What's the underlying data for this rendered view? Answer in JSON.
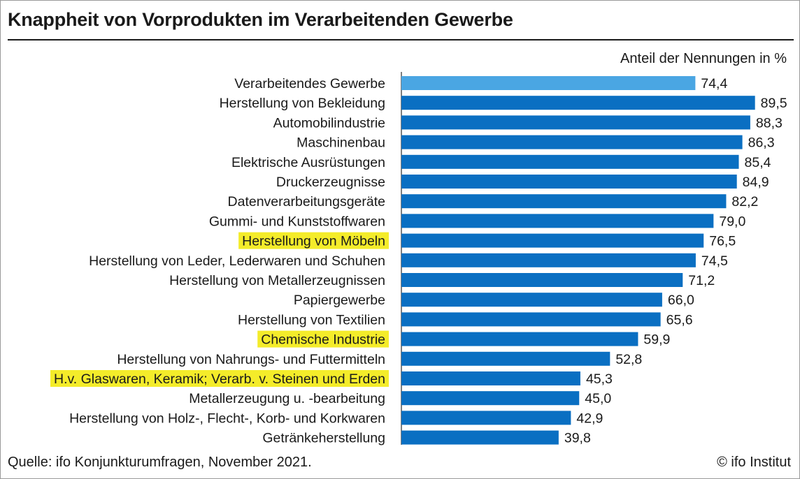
{
  "header": {
    "title": "Knappheit von Vorprodukten im Verarbeitenden Gewerbe",
    "unit_label": "Anteil der Nennungen in %"
  },
  "footer": {
    "source": "Quelle: ifo Konjunkturumfragen, November 2021.",
    "copyright": "© ifo Institut"
  },
  "colors": {
    "bar": "#0a6fc2",
    "bar_highlight": "#4aa6e3",
    "label_highlight": "#f4ec2a"
  },
  "chart_data": {
    "type": "bar",
    "orientation": "horizontal",
    "xlim": [
      0,
      100
    ],
    "categories": [
      "Verarbeitendes Gewerbe",
      "Herstellung von Bekleidung",
      "Automobilindustrie",
      "Maschinenbau",
      "Elektrische Ausrüstungen",
      "Druckerzeugnisse",
      "Datenverarbeitungsgeräte",
      "Gummi- und Kunststoffwaren",
      "Herstellung von Möbeln",
      "Herstellung von Leder, Lederwaren und Schuhen",
      "Herstellung von Metallerzeugnissen",
      "Papiergewerbe",
      "Herstellung von Textilien",
      "Chemische Industrie",
      "Herstellung von Nahrungs- und Futtermitteln",
      "H.v. Glaswaren, Keramik; Verarb. v. Steinen und Erden",
      "Metallerzeugung u. -bearbeitung",
      "Herstellung von Holz-, Flecht-, Korb- und Korkwaren",
      "Getränkeherstellung"
    ],
    "values": [
      74.4,
      89.5,
      88.3,
      86.3,
      85.4,
      84.9,
      82.2,
      79.0,
      76.5,
      74.5,
      71.2,
      66.0,
      65.6,
      59.9,
      52.8,
      45.3,
      45.0,
      42.9,
      39.8
    ],
    "value_labels": [
      "74,4",
      "89,5",
      "88,3",
      "86,3",
      "85,4",
      "84,9",
      "82,2",
      "79,0",
      "76,5",
      "74,5",
      "71,2",
      "66,0",
      "65,6",
      "59,9",
      "52,8",
      "45,3",
      "45,0",
      "42,9",
      "39,8"
    ],
    "bar_highlight_index": 0,
    "label_highlight_indices": [
      8,
      13,
      15
    ]
  }
}
